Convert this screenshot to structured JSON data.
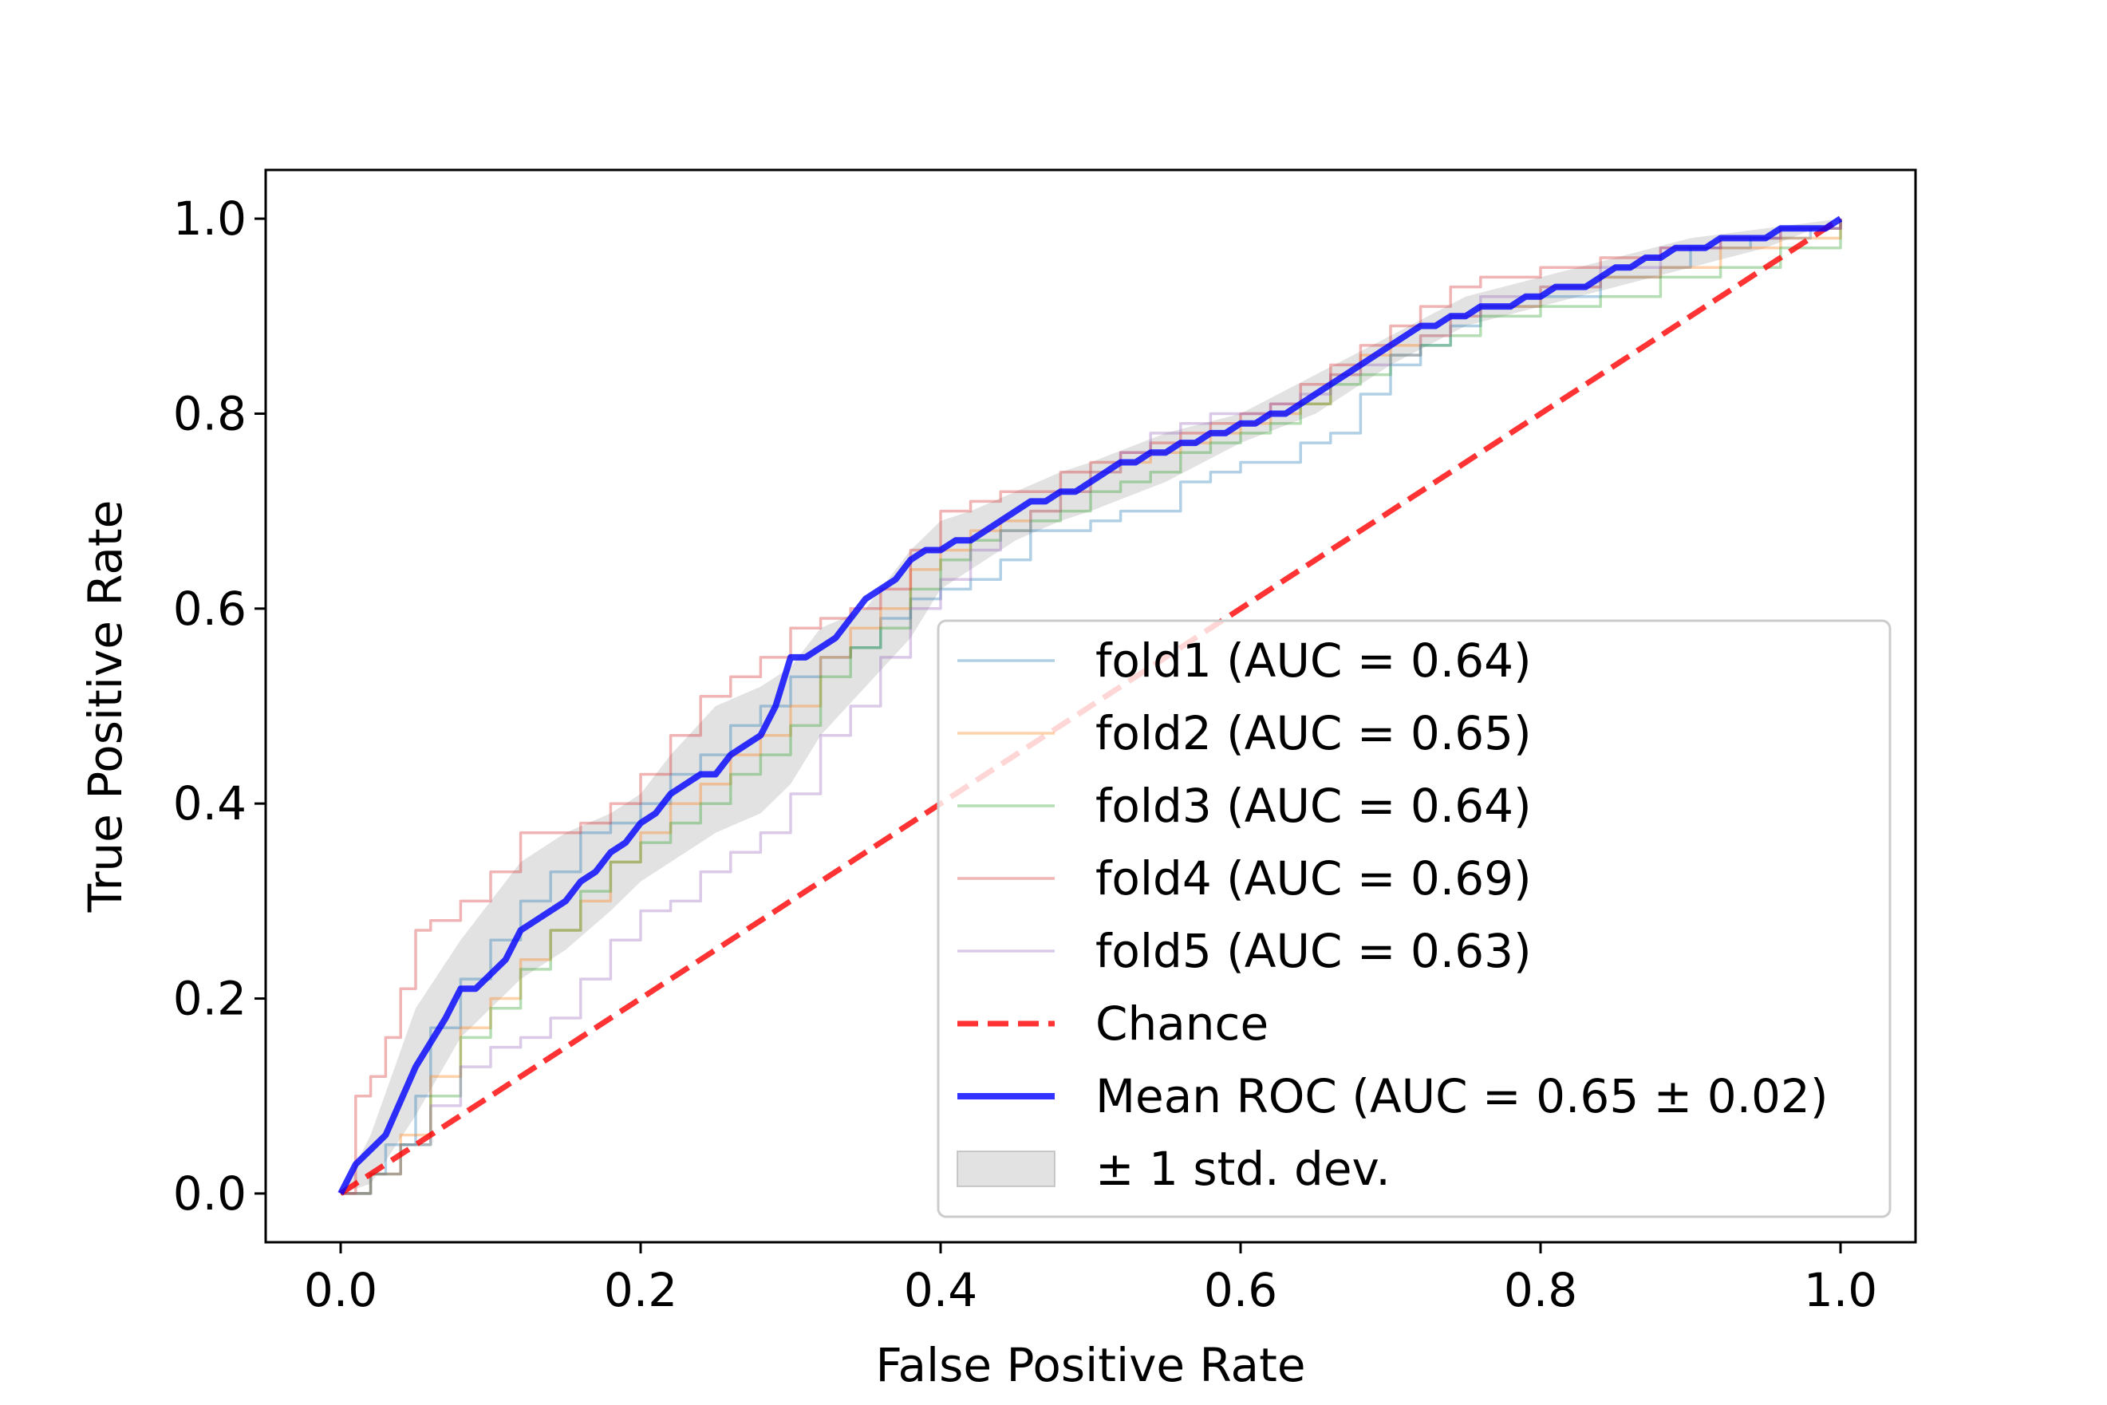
{
  "chart_data": {
    "type": "line",
    "title": "",
    "xlabel": "False Positive Rate",
    "ylabel": "True Positive Rate",
    "xlim": [
      -0.05,
      1.05
    ],
    "ylim": [
      -0.05,
      1.05
    ],
    "xticks": [
      0.0,
      0.2,
      0.4,
      0.6,
      0.8,
      1.0
    ],
    "yticks": [
      0.0,
      0.2,
      0.4,
      0.6,
      0.8,
      1.0
    ],
    "xtick_labels": [
      "0.0",
      "0.2",
      "0.4",
      "0.6",
      "0.8",
      "1.0"
    ],
    "ytick_labels": [
      "0.0",
      "0.2",
      "0.4",
      "0.6",
      "0.8",
      "1.0"
    ],
    "grid": false,
    "legend_position": "lower-right",
    "series": [
      {
        "name": "fold1 (AUC = 0.64)",
        "color": "#1f77b4",
        "style": "step",
        "x": [
          0.0,
          0.02,
          0.03,
          0.05,
          0.06,
          0.08,
          0.1,
          0.12,
          0.14,
          0.16,
          0.18,
          0.2,
          0.22,
          0.24,
          0.26,
          0.28,
          0.3,
          0.32,
          0.34,
          0.36,
          0.38,
          0.4,
          0.42,
          0.44,
          0.46,
          0.48,
          0.5,
          0.52,
          0.54,
          0.56,
          0.58,
          0.6,
          0.62,
          0.64,
          0.66,
          0.68,
          0.7,
          0.72,
          0.74,
          0.76,
          0.8,
          0.84,
          0.88,
          0.9,
          0.94,
          0.98,
          1.0
        ],
        "y": [
          0.0,
          0.02,
          0.05,
          0.1,
          0.17,
          0.22,
          0.26,
          0.3,
          0.33,
          0.37,
          0.38,
          0.4,
          0.43,
          0.45,
          0.48,
          0.5,
          0.53,
          0.55,
          0.56,
          0.59,
          0.61,
          0.62,
          0.63,
          0.65,
          0.68,
          0.68,
          0.69,
          0.7,
          0.7,
          0.73,
          0.74,
          0.75,
          0.75,
          0.77,
          0.78,
          0.82,
          0.85,
          0.87,
          0.89,
          0.91,
          0.92,
          0.94,
          0.95,
          0.97,
          0.98,
          0.99,
          1.0
        ]
      },
      {
        "name": "fold2 (AUC = 0.65)",
        "color": "#ff7f0e",
        "style": "step",
        "x": [
          0.0,
          0.02,
          0.04,
          0.06,
          0.08,
          0.1,
          0.12,
          0.14,
          0.16,
          0.18,
          0.2,
          0.22,
          0.24,
          0.26,
          0.28,
          0.3,
          0.32,
          0.34,
          0.36,
          0.38,
          0.4,
          0.42,
          0.44,
          0.46,
          0.48,
          0.5,
          0.52,
          0.54,
          0.56,
          0.58,
          0.6,
          0.62,
          0.64,
          0.66,
          0.68,
          0.7,
          0.72,
          0.74,
          0.76,
          0.8,
          0.84,
          0.88,
          0.92,
          0.96,
          1.0
        ],
        "y": [
          0.0,
          0.02,
          0.06,
          0.12,
          0.17,
          0.2,
          0.24,
          0.27,
          0.3,
          0.34,
          0.37,
          0.4,
          0.42,
          0.45,
          0.47,
          0.5,
          0.55,
          0.58,
          0.6,
          0.64,
          0.66,
          0.68,
          0.69,
          0.7,
          0.72,
          0.74,
          0.75,
          0.76,
          0.77,
          0.78,
          0.79,
          0.8,
          0.81,
          0.84,
          0.86,
          0.87,
          0.88,
          0.9,
          0.91,
          0.93,
          0.94,
          0.95,
          0.97,
          0.98,
          1.0
        ]
      },
      {
        "name": "fold3 (AUC = 0.64)",
        "color": "#2ca02c",
        "style": "step",
        "x": [
          0.0,
          0.02,
          0.04,
          0.06,
          0.08,
          0.1,
          0.12,
          0.14,
          0.16,
          0.18,
          0.2,
          0.22,
          0.24,
          0.26,
          0.28,
          0.3,
          0.32,
          0.34,
          0.36,
          0.38,
          0.4,
          0.42,
          0.44,
          0.46,
          0.48,
          0.5,
          0.52,
          0.54,
          0.56,
          0.58,
          0.6,
          0.62,
          0.64,
          0.66,
          0.68,
          0.7,
          0.72,
          0.74,
          0.76,
          0.8,
          0.84,
          0.88,
          0.92,
          0.96,
          1.0
        ],
        "y": [
          0.0,
          0.02,
          0.05,
          0.1,
          0.16,
          0.19,
          0.23,
          0.27,
          0.31,
          0.34,
          0.36,
          0.38,
          0.4,
          0.43,
          0.45,
          0.48,
          0.53,
          0.56,
          0.58,
          0.62,
          0.65,
          0.67,
          0.68,
          0.69,
          0.7,
          0.72,
          0.73,
          0.74,
          0.76,
          0.77,
          0.78,
          0.79,
          0.81,
          0.83,
          0.84,
          0.86,
          0.87,
          0.88,
          0.9,
          0.91,
          0.92,
          0.94,
          0.95,
          0.97,
          1.0
        ]
      },
      {
        "name": "fold4 (AUC = 0.69)",
        "color": "#d62728",
        "style": "step",
        "x": [
          0.0,
          0.01,
          0.02,
          0.03,
          0.04,
          0.05,
          0.06,
          0.08,
          0.1,
          0.12,
          0.14,
          0.16,
          0.18,
          0.2,
          0.22,
          0.24,
          0.26,
          0.28,
          0.3,
          0.32,
          0.34,
          0.36,
          0.38,
          0.4,
          0.42,
          0.44,
          0.46,
          0.48,
          0.5,
          0.52,
          0.54,
          0.56,
          0.58,
          0.6,
          0.62,
          0.64,
          0.66,
          0.68,
          0.7,
          0.72,
          0.74,
          0.76,
          0.8,
          0.84,
          0.88,
          0.92,
          0.96,
          1.0
        ],
        "y": [
          0.0,
          0.1,
          0.12,
          0.16,
          0.21,
          0.27,
          0.28,
          0.3,
          0.33,
          0.37,
          0.37,
          0.38,
          0.4,
          0.43,
          0.47,
          0.51,
          0.53,
          0.55,
          0.58,
          0.59,
          0.6,
          0.62,
          0.66,
          0.7,
          0.71,
          0.72,
          0.72,
          0.74,
          0.75,
          0.76,
          0.77,
          0.78,
          0.79,
          0.8,
          0.81,
          0.83,
          0.85,
          0.87,
          0.89,
          0.91,
          0.93,
          0.94,
          0.95,
          0.96,
          0.97,
          0.98,
          0.99,
          1.0
        ]
      },
      {
        "name": "fold5 (AUC = 0.63)",
        "color": "#9467bd",
        "style": "step",
        "x": [
          0.0,
          0.02,
          0.04,
          0.06,
          0.08,
          0.1,
          0.12,
          0.14,
          0.16,
          0.18,
          0.2,
          0.22,
          0.24,
          0.26,
          0.28,
          0.3,
          0.32,
          0.34,
          0.36,
          0.38,
          0.4,
          0.42,
          0.44,
          0.46,
          0.48,
          0.5,
          0.52,
          0.54,
          0.56,
          0.58,
          0.6,
          0.62,
          0.64,
          0.66,
          0.68,
          0.7,
          0.72,
          0.74,
          0.76,
          0.8,
          0.84,
          0.88,
          0.92,
          0.96,
          1.0
        ],
        "y": [
          0.0,
          0.02,
          0.05,
          0.09,
          0.13,
          0.15,
          0.16,
          0.18,
          0.22,
          0.26,
          0.29,
          0.3,
          0.33,
          0.35,
          0.37,
          0.41,
          0.47,
          0.5,
          0.55,
          0.6,
          0.63,
          0.66,
          0.68,
          0.7,
          0.72,
          0.74,
          0.76,
          0.78,
          0.79,
          0.8,
          0.8,
          0.81,
          0.82,
          0.84,
          0.85,
          0.86,
          0.88,
          0.9,
          0.92,
          0.93,
          0.95,
          0.97,
          0.98,
          0.99,
          1.0
        ]
      },
      {
        "name": "Chance",
        "color": "#ff0000",
        "style": "dashed",
        "x": [
          0.0,
          1.0
        ],
        "y": [
          0.0,
          1.0
        ]
      },
      {
        "name": "Mean ROC (AUC = 0.65 ± 0.02)",
        "color": "#0000ff",
        "style": "solid",
        "x": [
          0.0,
          0.01,
          0.03,
          0.05,
          0.07,
          0.08,
          0.09,
          0.11,
          0.12,
          0.13,
          0.15,
          0.16,
          0.17,
          0.18,
          0.19,
          0.2,
          0.21,
          0.22,
          0.23,
          0.24,
          0.25,
          0.26,
          0.27,
          0.28,
          0.29,
          0.3,
          0.31,
          0.32,
          0.33,
          0.34,
          0.35,
          0.36,
          0.37,
          0.38,
          0.39,
          0.4,
          0.41,
          0.42,
          0.43,
          0.44,
          0.45,
          0.46,
          0.47,
          0.48,
          0.49,
          0.5,
          0.51,
          0.52,
          0.53,
          0.54,
          0.55,
          0.56,
          0.57,
          0.58,
          0.59,
          0.6,
          0.61,
          0.62,
          0.63,
          0.64,
          0.65,
          0.66,
          0.67,
          0.68,
          0.69,
          0.7,
          0.71,
          0.72,
          0.73,
          0.74,
          0.75,
          0.76,
          0.77,
          0.78,
          0.79,
          0.8,
          0.81,
          0.82,
          0.83,
          0.84,
          0.85,
          0.86,
          0.87,
          0.88,
          0.89,
          0.9,
          0.91,
          0.92,
          0.93,
          0.94,
          0.95,
          0.96,
          0.97,
          0.98,
          0.99,
          1.0
        ],
        "y": [
          0.0,
          0.03,
          0.06,
          0.13,
          0.18,
          0.21,
          0.21,
          0.24,
          0.27,
          0.28,
          0.3,
          0.32,
          0.33,
          0.35,
          0.36,
          0.38,
          0.39,
          0.41,
          0.42,
          0.43,
          0.43,
          0.45,
          0.46,
          0.47,
          0.5,
          0.55,
          0.55,
          0.56,
          0.57,
          0.59,
          0.61,
          0.62,
          0.63,
          0.65,
          0.66,
          0.66,
          0.67,
          0.67,
          0.68,
          0.69,
          0.7,
          0.71,
          0.71,
          0.72,
          0.72,
          0.73,
          0.74,
          0.75,
          0.75,
          0.76,
          0.76,
          0.77,
          0.77,
          0.78,
          0.78,
          0.79,
          0.79,
          0.8,
          0.8,
          0.81,
          0.82,
          0.83,
          0.84,
          0.85,
          0.86,
          0.87,
          0.88,
          0.89,
          0.89,
          0.9,
          0.9,
          0.91,
          0.91,
          0.91,
          0.92,
          0.92,
          0.93,
          0.93,
          0.93,
          0.94,
          0.95,
          0.95,
          0.96,
          0.96,
          0.97,
          0.97,
          0.97,
          0.98,
          0.98,
          0.98,
          0.98,
          0.99,
          0.99,
          0.99,
          0.99,
          1.0
        ]
      }
    ],
    "band": {
      "name": "± 1 std. dev.",
      "color": "#a0a0a0",
      "x": [
        0.0,
        0.02,
        0.05,
        0.08,
        0.1,
        0.12,
        0.15,
        0.18,
        0.2,
        0.22,
        0.25,
        0.28,
        0.3,
        0.32,
        0.35,
        0.38,
        0.4,
        0.42,
        0.45,
        0.48,
        0.5,
        0.55,
        0.6,
        0.65,
        0.7,
        0.75,
        0.8,
        0.85,
        0.9,
        0.95,
        1.0
      ],
      "upper": [
        0.0,
        0.06,
        0.19,
        0.26,
        0.3,
        0.34,
        0.37,
        0.39,
        0.41,
        0.45,
        0.5,
        0.52,
        0.54,
        0.58,
        0.6,
        0.66,
        0.69,
        0.7,
        0.72,
        0.74,
        0.75,
        0.78,
        0.8,
        0.84,
        0.88,
        0.92,
        0.94,
        0.96,
        0.98,
        0.99,
        1.0
      ],
      "lower": [
        0.0,
        0.01,
        0.08,
        0.16,
        0.19,
        0.22,
        0.25,
        0.29,
        0.32,
        0.34,
        0.37,
        0.39,
        0.42,
        0.47,
        0.52,
        0.57,
        0.62,
        0.64,
        0.67,
        0.69,
        0.7,
        0.73,
        0.77,
        0.8,
        0.85,
        0.89,
        0.91,
        0.93,
        0.95,
        0.97,
        1.0
      ]
    },
    "legend": [
      {
        "label": "fold1 (AUC = 0.64)",
        "color": "#1f77b4",
        "kind": "line-faint"
      },
      {
        "label": "fold2 (AUC = 0.65)",
        "color": "#ff7f0e",
        "kind": "line-faint"
      },
      {
        "label": "fold3 (AUC = 0.64)",
        "color": "#2ca02c",
        "kind": "line-faint"
      },
      {
        "label": "fold4 (AUC = 0.69)",
        "color": "#d62728",
        "kind": "line-faint"
      },
      {
        "label": "fold5 (AUC = 0.63)",
        "color": "#9467bd",
        "kind": "line-faint"
      },
      {
        "label": "Chance",
        "color": "#ff0000",
        "kind": "dashed"
      },
      {
        "label": "Mean ROC (AUC = 0.65 ± 0.02)",
        "color": "#0000ff",
        "kind": "thick"
      },
      {
        "label": "± 1 std. dev.",
        "color": "#a0a0a0",
        "kind": "patch"
      }
    ]
  }
}
